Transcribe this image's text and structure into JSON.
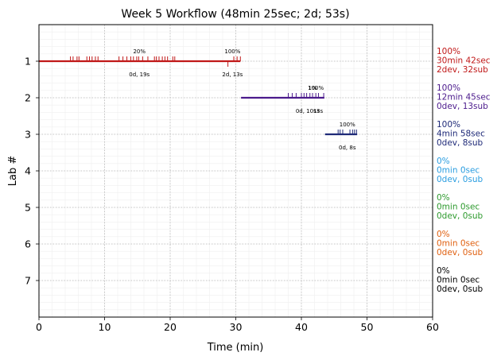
{
  "chart_data": {
    "type": "timeline",
    "title": "Week 5 Workflow (48min 25sec; 2d; 53s)",
    "xlabel": "Time (min)",
    "ylabel": "Lab #",
    "xlim": [
      0,
      60
    ],
    "ylim": [
      0,
      8
    ],
    "y_inverted": true,
    "grid": true,
    "x_ticks": [
      0,
      10,
      20,
      30,
      40,
      50,
      60
    ],
    "y_ticks": [
      1,
      2,
      3,
      4,
      5,
      6,
      7
    ],
    "labs": [
      {
        "lab": 1,
        "color": "#c01818",
        "start": 0,
        "end": 30.7,
        "pct_label": "20%",
        "pct_x": 15.3,
        "info_label": "0d, 19s",
        "info_x": 15.3,
        "pct_label2": "100%",
        "pct_x2": 29.5,
        "info_label2": "2d, 13s",
        "info_x2": 29.5,
        "ticks_up": [
          4.8,
          5.2,
          5.8,
          6.1,
          7.3,
          7.7,
          8.1,
          8.6,
          9.0,
          12.2,
          12.8,
          13.4,
          14.0,
          14.4,
          14.9,
          15.2,
          15.8,
          16.6,
          17.6,
          17.9,
          18.3,
          18.8,
          19.2,
          19.6,
          20.4,
          20.7,
          29.7,
          30.2,
          30.7
        ],
        "ticks_down": [
          28.8
        ],
        "summary": [
          "100%",
          "30min 42sec",
          "2dev, 32sub"
        ]
      },
      {
        "lab": 2,
        "color": "#4b1a8c",
        "start": 30.8,
        "end": 43.5,
        "pct_label": "100%",
        "pct_x": 42.2,
        "pct_label_b": "1%",
        "pct_x_b": 41.7,
        "info_label": "0d, 10s",
        "info_x": 40.7,
        "info_label_b": "1s",
        "info_x_b": 42.3,
        "info_label_c": "3s",
        "info_x_c": 42.8,
        "ticks_up": [
          38.0,
          38.6,
          39.2,
          40.0,
          40.4,
          40.8,
          41.3,
          41.7,
          42.2,
          42.6,
          43.4
        ],
        "ticks_down": [],
        "summary": [
          "100%",
          "12min 45sec",
          "0dev, 13sub"
        ]
      },
      {
        "lab": 3,
        "color": "#1f2a78",
        "start": 43.6,
        "end": 48.5,
        "pct_label": "100%",
        "pct_x": 47.0,
        "info_label": "0d, 8s",
        "info_x": 47.0,
        "ticks_up": [
          45.6,
          45.9,
          46.3,
          47.4,
          47.8,
          48.1,
          48.4
        ],
        "ticks_down": [],
        "summary": [
          "100%",
          "4min 58sec",
          "0dev, 8sub"
        ]
      },
      {
        "lab": 4,
        "color": "#2a9de0",
        "summary": [
          "0%",
          "0min 0sec",
          "0dev, 0sub"
        ]
      },
      {
        "lab": 5,
        "color": "#2e9a2e",
        "summary": [
          "0%",
          "0min 0sec",
          "0dev, 0sub"
        ]
      },
      {
        "lab": 6,
        "color": "#e06010",
        "summary": [
          "0%",
          "0min 0sec",
          "0dev, 0sub"
        ]
      },
      {
        "lab": 7,
        "color": "#000000",
        "summary": [
          "0%",
          "0min 0sec",
          "0dev, 0sub"
        ]
      }
    ]
  }
}
